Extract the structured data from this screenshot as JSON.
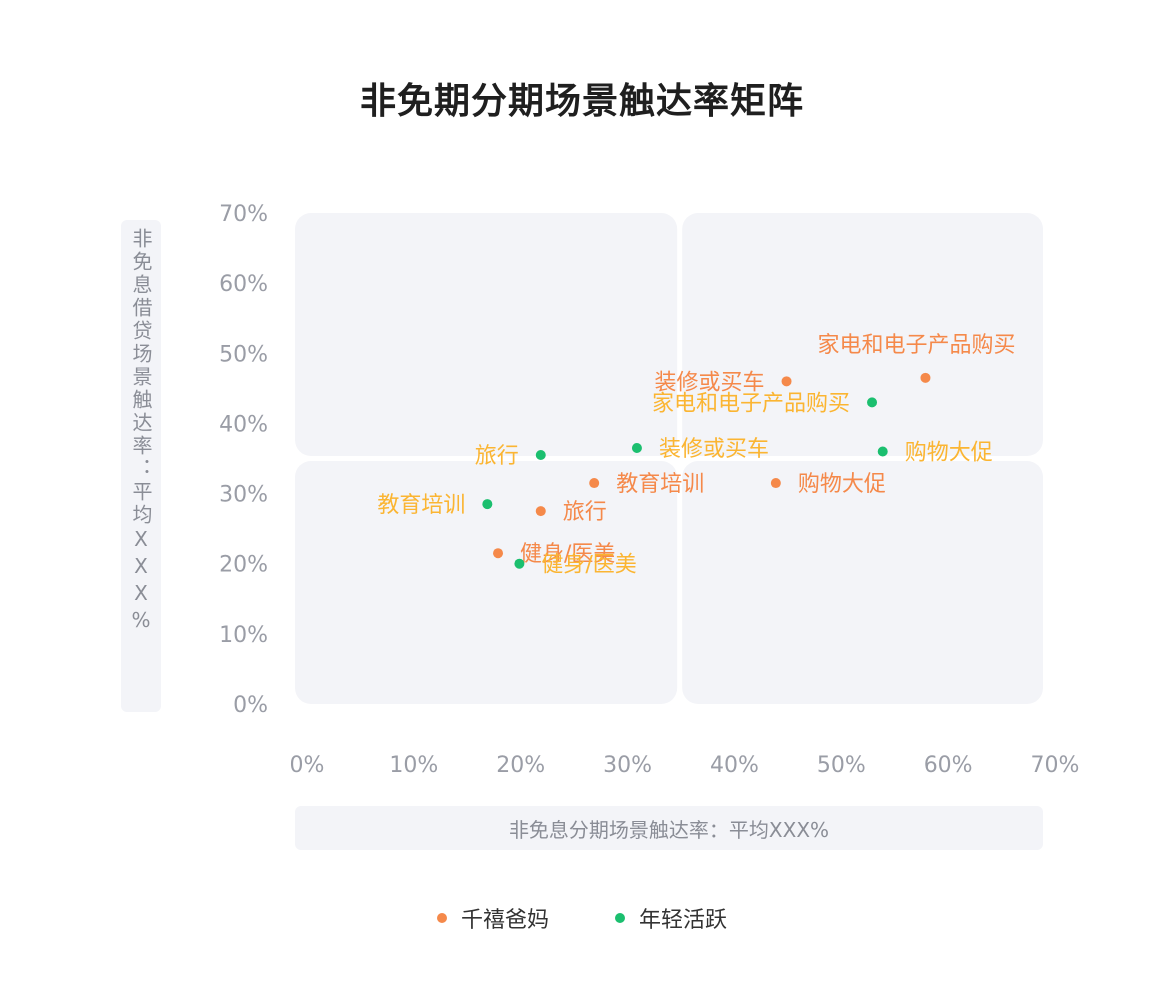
{
  "title": "非免期分期场景触达率矩阵",
  "chart_data": {
    "type": "scatter",
    "title": "非免期分期场景触达率矩阵",
    "xlabel": "非免息分期场景触达率：平均XXX%",
    "ylabel": "非免息借贷场景触达率：平均XXX%",
    "xlim": [
      0,
      70
    ],
    "ylim": [
      0,
      70
    ],
    "x_ticks": [
      "0%",
      "10%",
      "20%",
      "30%",
      "40%",
      "50%",
      "60%",
      "70%"
    ],
    "y_ticks": [
      "0%",
      "10%",
      "20%",
      "30%",
      "40%",
      "50%",
      "60%",
      "70%"
    ],
    "quadrant_split": {
      "x": 36,
      "y": 35
    },
    "legend_position": "bottom",
    "series": [
      {
        "name": "千禧爸妈",
        "color": "#f5894a",
        "label_color": "#f5894a",
        "points": [
          {
            "label": "家电和电子产品购买",
            "x": 59,
            "y": 46.5,
            "label_pos": "above"
          },
          {
            "label": "装修或买车",
            "x": 46,
            "y": 46,
            "label_pos": "left"
          },
          {
            "label": "购物大促",
            "x": 45,
            "y": 31.5,
            "label_pos": "right"
          },
          {
            "label": "教育培训",
            "x": 28,
            "y": 31.5,
            "label_pos": "right"
          },
          {
            "label": "旅行",
            "x": 23,
            "y": 27.5,
            "label_pos": "right"
          },
          {
            "label": "健身/医美",
            "x": 19,
            "y": 21.5,
            "label_pos": "right"
          }
        ]
      },
      {
        "name": "年轻活跃",
        "color": "#1bbf6f",
        "label_color": "#fbb532",
        "points": [
          {
            "label": "家电和电子产品购买",
            "x": 54,
            "y": 43,
            "label_pos": "left"
          },
          {
            "label": "购物大促",
            "x": 55,
            "y": 36,
            "label_pos": "right"
          },
          {
            "label": "装修或买车",
            "x": 32,
            "y": 36.5,
            "label_pos": "right"
          },
          {
            "label": "旅行",
            "x": 23,
            "y": 35.5,
            "label_pos": "left"
          },
          {
            "label": "教育培训",
            "x": 18,
            "y": 28.5,
            "label_pos": "left"
          },
          {
            "label": "健身/医美",
            "x": 21,
            "y": 20,
            "label_pos": "right-low"
          }
        ]
      }
    ]
  },
  "legend": [
    {
      "name": "千禧爸妈",
      "color": "#f5894a"
    },
    {
      "name": "年轻活跃",
      "color": "#1bbf6f"
    }
  ]
}
